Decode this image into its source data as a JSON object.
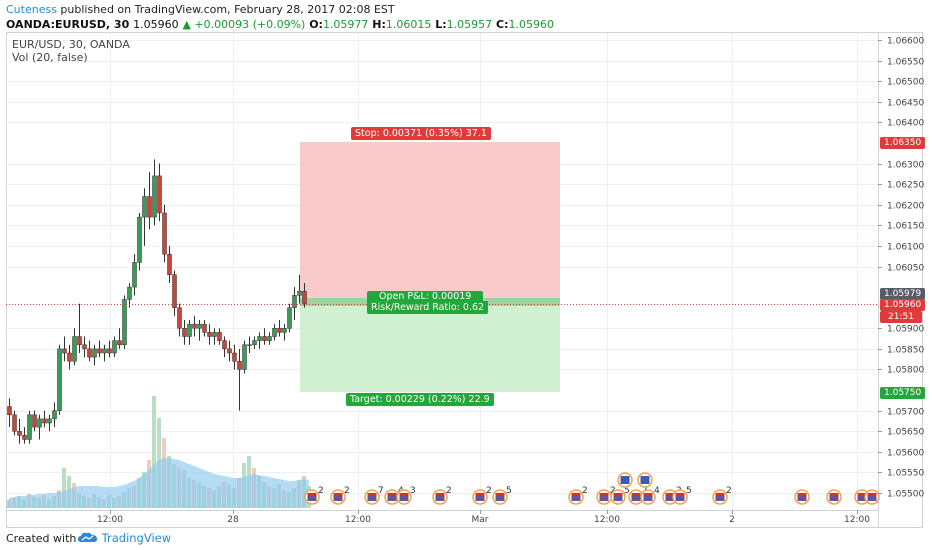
{
  "header": {
    "author": "Cuteness",
    "published_text": " published on TradingView.com, February 28, 2017 02:08 EST",
    "symbol": "OANDA:EURUSD, 30",
    "last": "1.05960",
    "change": "▲ +0.00093 (+0.09%)",
    "o_label": "O:",
    "o": "1.05977",
    "h_label": "H:",
    "h": "1.06015",
    "l_label": "L:",
    "l": "1.05957",
    "c_label": "C:",
    "c": "1.05960"
  },
  "legend": {
    "series": "EUR/USD, 30, OANDA",
    "volume": "Vol (20, false)"
  },
  "price_axis": {
    "ticks": [
      "1.06600",
      "1.06550",
      "1.06500",
      "1.06450",
      "1.06400",
      "1.06300",
      "1.06250",
      "1.06200",
      "1.06150",
      "1.06100",
      "1.06050",
      "1.05900",
      "1.05850",
      "1.05800",
      "1.05700",
      "1.05650",
      "1.05600",
      "1.05550",
      "1.05500"
    ],
    "badges": {
      "stop_price": "1.06350",
      "bid": "1.05979",
      "last": "1.05960",
      "countdown": "21:51",
      "target_price": "1.05750"
    }
  },
  "time_axis": {
    "labels": [
      "12:00",
      "28",
      "12:00",
      "Mar",
      "12:00",
      "2",
      "12:00"
    ]
  },
  "position_tool": {
    "stop_label": "Stop: 0.00371 (0.35%) 37.1",
    "pnl_label": "Open P&L: 0.00019",
    "rr_label": "Risk/Reward Ratio: 0.62",
    "target_label": "Target: 0.00229 (0.22%) 22.9"
  },
  "colors": {
    "up": "#3c9a57",
    "down": "#c8453a",
    "stop_zone": "#f7c6c6",
    "target_zone": "#cbeccb",
    "stop_tag": "#e03b3b",
    "target_tag": "#23a63a",
    "volume_up": "#b9dfc3",
    "volume_down": "#f2c9c3",
    "volume_ma": "#8ec9ee"
  },
  "footer": {
    "created_with": "Created with",
    "brand": "TradingView"
  },
  "event_markers": {
    "flag_icon": "us-flag-icon",
    "group_counts": [
      "2",
      "2",
      "7",
      "4",
      "3",
      "2",
      "2",
      "5",
      "2",
      "2",
      "5",
      "7",
      "4",
      "2",
      "5",
      "2"
    ]
  }
}
